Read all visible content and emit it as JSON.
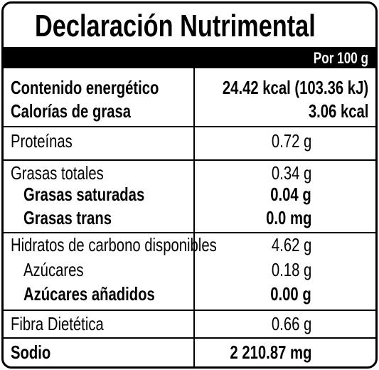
{
  "title": "Declaración Nutrimental",
  "header": {
    "serving": "Por 100 g"
  },
  "rows": [
    {
      "label": "Contenido energético",
      "value": "24.42 kcal (103.36 kJ)"
    },
    {
      "label": "Calorías de grasa",
      "value": "3.06 kcal"
    },
    {
      "label": "Proteínas",
      "value": "0.72 g"
    },
    {
      "label": "Grasas totales",
      "value": "0.34 g"
    },
    {
      "label": "Grasas saturadas",
      "value": "0.04 g"
    },
    {
      "label": "Grasas trans",
      "value": "0.0 mg"
    },
    {
      "label": "Hidratos de carbono disponibles",
      "value": "4.62 g"
    },
    {
      "label": "Azúcares",
      "value": "0.18 g"
    },
    {
      "label": "Azúcares añadidos",
      "value": "0.00 g"
    },
    {
      "label": "Fibra Dietética",
      "value": "0.66 g"
    },
    {
      "label": "Sodio",
      "value": "2 210.87 mg"
    }
  ]
}
